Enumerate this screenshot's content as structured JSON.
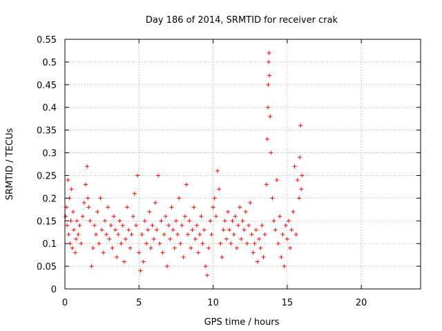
{
  "chart_data": {
    "type": "scatter",
    "title": "Day 186 of 2014, SRMTID for receiver crak",
    "xlabel": "GPS time / hours",
    "ylabel": "SRMTID / TECUs",
    "xlim": [
      0,
      24
    ],
    "ylim": [
      0,
      0.55
    ],
    "xticks": [
      "0",
      "5",
      "10",
      "15",
      "20"
    ],
    "yticks": [
      "0",
      "0.05",
      "0.1",
      "0.15",
      "0.2",
      "0.25",
      "0.3",
      "0.35",
      "0.4",
      "0.45",
      "0.5",
      "0.55"
    ],
    "grid": true,
    "marker": "+",
    "colors": {
      "points": "#ff0000",
      "grid": "#a0a0a0"
    },
    "series": [
      {
        "values": [
          [
            0.05,
            0.16
          ],
          [
            0.1,
            0.18
          ],
          [
            0.15,
            0.14
          ],
          [
            0.2,
            0.24
          ],
          [
            0.25,
            0.12
          ],
          [
            0.3,
            0.2
          ],
          [
            0.35,
            0.1
          ],
          [
            0.4,
            0.15
          ],
          [
            0.45,
            0.22
          ],
          [
            0.5,
            0.09
          ],
          [
            0.55,
            0.17
          ],
          [
            0.6,
            0.13
          ],
          [
            0.7,
            0.08
          ],
          [
            0.75,
            0.11
          ],
          [
            0.8,
            0.15
          ],
          [
            0.9,
            0.12
          ],
          [
            1.0,
            0.14
          ],
          [
            1.1,
            0.1
          ],
          [
            1.2,
            0.16
          ],
          [
            1.3,
            0.19
          ],
          [
            1.4,
            0.23
          ],
          [
            1.5,
            0.27
          ],
          [
            1.55,
            0.2
          ],
          [
            1.6,
            0.18
          ],
          [
            1.7,
            0.15
          ],
          [
            1.8,
            0.05
          ],
          [
            1.9,
            0.09
          ],
          [
            2.0,
            0.14
          ],
          [
            2.1,
            0.12
          ],
          [
            2.2,
            0.17
          ],
          [
            2.3,
            0.1
          ],
          [
            2.4,
            0.2
          ],
          [
            2.5,
            0.13
          ],
          [
            2.6,
            0.08
          ],
          [
            2.7,
            0.15
          ],
          [
            2.8,
            0.12
          ],
          [
            2.9,
            0.18
          ],
          [
            3.0,
            0.11
          ],
          [
            3.1,
            0.14
          ],
          [
            3.2,
            0.09
          ],
          [
            3.3,
            0.16
          ],
          [
            3.4,
            0.13
          ],
          [
            3.5,
            0.07
          ],
          [
            3.6,
            0.12
          ],
          [
            3.7,
            0.15
          ],
          [
            3.8,
            0.1
          ],
          [
            3.9,
            0.14
          ],
          [
            4.0,
            0.06
          ],
          [
            4.1,
            0.11
          ],
          [
            4.2,
            0.18
          ],
          [
            4.3,
            0.13
          ],
          [
            4.4,
            0.09
          ],
          [
            4.5,
            0.12
          ],
          [
            4.6,
            0.16
          ],
          [
            4.7,
            0.21
          ],
          [
            4.8,
            0.14
          ],
          [
            4.9,
            0.25
          ],
          [
            5.0,
            0.08
          ],
          [
            5.1,
            0.04
          ],
          [
            5.2,
            0.12
          ],
          [
            5.3,
            0.06
          ],
          [
            5.4,
            0.15
          ],
          [
            5.5,
            0.1
          ],
          [
            5.6,
            0.13
          ],
          [
            5.7,
            0.17
          ],
          [
            5.8,
            0.09
          ],
          [
            5.9,
            0.14
          ],
          [
            6.0,
            0.11
          ],
          [
            6.1,
            0.19
          ],
          [
            6.2,
            0.13
          ],
          [
            6.3,
            0.25
          ],
          [
            6.4,
            0.1
          ],
          [
            6.5,
            0.15
          ],
          [
            6.6,
            0.08
          ],
          [
            6.7,
            0.12
          ],
          [
            6.8,
            0.16
          ],
          [
            6.9,
            0.05
          ],
          [
            7.0,
            0.14
          ],
          [
            7.1,
            0.11
          ],
          [
            7.2,
            0.18
          ],
          [
            7.3,
            0.13
          ],
          [
            7.4,
            0.09
          ],
          [
            7.5,
            0.15
          ],
          [
            7.6,
            0.12
          ],
          [
            7.7,
            0.2
          ],
          [
            7.8,
            0.1
          ],
          [
            7.9,
            0.14
          ],
          [
            8.0,
            0.07
          ],
          [
            8.1,
            0.16
          ],
          [
            8.2,
            0.23
          ],
          [
            8.3,
            0.12
          ],
          [
            8.4,
            0.15
          ],
          [
            8.5,
            0.09
          ],
          [
            8.6,
            0.13
          ],
          [
            8.7,
            0.18
          ],
          [
            8.8,
            0.11
          ],
          [
            8.9,
            0.14
          ],
          [
            9.0,
            0.08
          ],
          [
            9.1,
            0.12
          ],
          [
            9.2,
            0.16
          ],
          [
            9.3,
            0.1
          ],
          [
            9.4,
            0.13
          ],
          [
            9.5,
            0.05
          ],
          [
            9.6,
            0.03
          ],
          [
            9.7,
            0.09
          ],
          [
            9.8,
            0.15
          ],
          [
            9.9,
            0.12
          ],
          [
            10.0,
            0.18
          ],
          [
            10.1,
            0.2
          ],
          [
            10.2,
            0.16
          ],
          [
            10.3,
            0.26
          ],
          [
            10.4,
            0.22
          ],
          [
            10.5,
            0.1
          ],
          [
            10.6,
            0.07
          ],
          [
            10.7,
            0.13
          ],
          [
            10.8,
            0.15
          ],
          [
            10.9,
            0.11
          ],
          [
            11.0,
            0.17
          ],
          [
            11.1,
            0.13
          ],
          [
            11.2,
            0.1
          ],
          [
            11.3,
            0.15
          ],
          [
            11.4,
            0.12
          ],
          [
            11.5,
            0.16
          ],
          [
            11.6,
            0.09
          ],
          [
            11.7,
            0.14
          ],
          [
            11.8,
            0.18
          ],
          [
            11.9,
            0.11
          ],
          [
            12.0,
            0.15
          ],
          [
            12.1,
            0.13
          ],
          [
            12.2,
            0.17
          ],
          [
            12.3,
            0.1
          ],
          [
            12.4,
            0.14
          ],
          [
            12.5,
            0.19
          ],
          [
            12.6,
            0.12
          ],
          [
            12.7,
            0.08
          ],
          [
            12.8,
            0.1
          ],
          [
            12.9,
            0.13
          ],
          [
            13.0,
            0.06
          ],
          [
            13.1,
            0.11
          ],
          [
            13.2,
            0.09
          ],
          [
            13.3,
            0.14
          ],
          [
            13.4,
            0.07
          ],
          [
            13.5,
            0.12
          ],
          [
            13.6,
            0.23
          ],
          [
            13.65,
            0.33
          ],
          [
            13.7,
            0.4
          ],
          [
            13.72,
            0.45
          ],
          [
            13.75,
            0.5
          ],
          [
            13.78,
            0.52
          ],
          [
            13.8,
            0.47
          ],
          [
            13.85,
            0.38
          ],
          [
            13.9,
            0.3
          ],
          [
            14.0,
            0.2
          ],
          [
            14.1,
            0.15
          ],
          [
            14.2,
            0.13
          ],
          [
            14.3,
            0.24
          ],
          [
            14.4,
            0.1
          ],
          [
            14.5,
            0.16
          ],
          [
            14.6,
            0.07
          ],
          [
            14.7,
            0.12
          ],
          [
            14.8,
            0.05
          ],
          [
            14.9,
            0.14
          ],
          [
            15.0,
            0.11
          ],
          [
            15.1,
            0.15
          ],
          [
            15.2,
            0.09
          ],
          [
            15.3,
            0.13
          ],
          [
            15.4,
            0.17
          ],
          [
            15.5,
            0.27
          ],
          [
            15.6,
            0.12
          ],
          [
            15.7,
            0.24
          ],
          [
            15.8,
            0.2
          ],
          [
            15.85,
            0.29
          ],
          [
            15.9,
            0.36
          ],
          [
            15.95,
            0.22
          ],
          [
            16.0,
            0.25
          ]
        ]
      }
    ]
  }
}
